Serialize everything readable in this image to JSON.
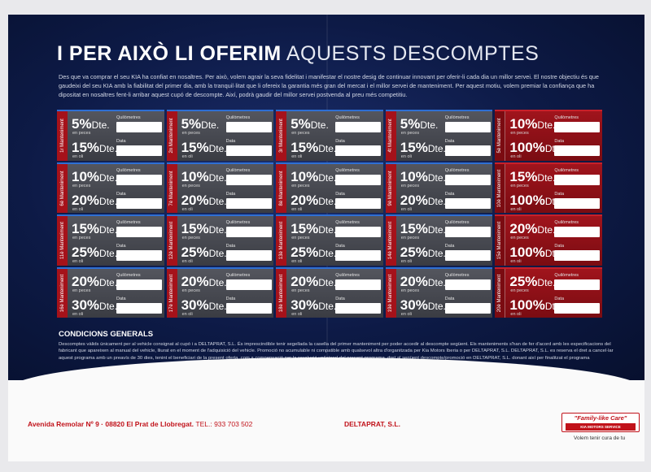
{
  "title_bold": "I PER AIXÒ LI OFERIM",
  "title_light": "AQUESTS DESCOMPTES",
  "intro": "Des que va comprar el seu KIA ha confiat en nosaltres. Per això, volem agrair la seva fidelitat i manifestar el nostre desig de continuar innovant per oferir-li cada dia un millor servei. El nostre objectiu és que gaudeixi del seu KIA amb la fiabilitat del primer dia, amb la tranquil·litat que li ofereix la garantia més gran del mercat i el millor servei de manteniment. Per aquest motiu, volem premiar la confiança que ha dipositat en nosaltres fent-li arribar aquest cupó de descompte. Així, podrà gaudir del millor servei postvenda al preu més competitiu.",
  "labels": {
    "quilometres": "Quilòmetres",
    "data": "Data",
    "dte": "Dte.",
    "en_peces": "en peces",
    "en_oli": "en oli"
  },
  "coupons": [
    {
      "label": "1r Manteniment",
      "parts": "5%",
      "oil": "15%",
      "red": false
    },
    {
      "label": "2n Manteniment",
      "parts": "5%",
      "oil": "15%",
      "red": false
    },
    {
      "label": "3r Manteniment",
      "parts": "5%",
      "oil": "15%",
      "red": false
    },
    {
      "label": "4t Manteniment",
      "parts": "5%",
      "oil": "15%",
      "red": false
    },
    {
      "label": "5è Manteniment",
      "parts": "10%",
      "oil": "100%",
      "red": true
    },
    {
      "label": "6è Manteniment",
      "parts": "10%",
      "oil": "20%",
      "red": false
    },
    {
      "label": "7è Manteniment",
      "parts": "10%",
      "oil": "20%",
      "red": false
    },
    {
      "label": "8è Manteniment",
      "parts": "10%",
      "oil": "20%",
      "red": false
    },
    {
      "label": "9è Manteniment",
      "parts": "10%",
      "oil": "20%",
      "red": false
    },
    {
      "label": "10è Manteniment",
      "parts": "15%",
      "oil": "100%",
      "red": true
    },
    {
      "label": "11è Manteniment",
      "parts": "15%",
      "oil": "25%",
      "red": false
    },
    {
      "label": "12è Manteniment",
      "parts": "15%",
      "oil": "25%",
      "red": false
    },
    {
      "label": "13è Manteniment",
      "parts": "15%",
      "oil": "25%",
      "red": false
    },
    {
      "label": "14è Manteniment",
      "parts": "15%",
      "oil": "25%",
      "red": false
    },
    {
      "label": "15è Manteniment",
      "parts": "20%",
      "oil": "100%",
      "red": true
    },
    {
      "label": "16è Manteniment",
      "parts": "20%",
      "oil": "30%",
      "red": false
    },
    {
      "label": "17è Manteniment",
      "parts": "20%",
      "oil": "30%",
      "red": false
    },
    {
      "label": "18è Manteniment",
      "parts": "20%",
      "oil": "30%",
      "red": false
    },
    {
      "label": "19è Manteniment",
      "parts": "20%",
      "oil": "30%",
      "red": false
    },
    {
      "label": "20è Manteniment",
      "parts": "25%",
      "oil": "100%",
      "red": true
    }
  ],
  "conditions_title": "CONDICIONS GENERALS",
  "conditions": "Descomptes vàlids únicament per al vehicle consignat al cupó i a DELTAPRAT, S.L. És imprescindible tenir segellada la casella del primer manteniment per poder accedir al descompte següent. Els manteniments s'han de fer d'acord amb les especificacions del fabricant que apareixen al manual del vehicle, lliurat en el moment de l'adquisició del vehicle. Promoció no acumulable ni compatible amb qualsevol altra d'organitzada per Kia Motors Iberia o per DELTAPRAT, S.L. DELTAPRAT, S.L. es reserva el dret a cancel·lar aquest programa amb un preavís de 30 dies, tenint el beneficiari de la present oferta, com a compensació per la resolució unilateral del present programa, dret al següent descompte/promoció en DELTAPRAT, S.L. donant així per finalitzat el programa",
  "footer": {
    "address": "Avenida Remolar Nº 9 · 08820 El Prat de Llobregat.",
    "tel": "TEL.: 933 703 502",
    "company": "DELTAPRAT, S.L.",
    "badge_top": "\"Family-like Care\"",
    "badge_bottom": "KIA MOTORS SERVICE",
    "slogan": "Volem tenir cura de tu"
  },
  "colors": {
    "accent_blue": "#2e6fd4",
    "kia_red": "#c1121a",
    "navy": "#0d1a46"
  }
}
